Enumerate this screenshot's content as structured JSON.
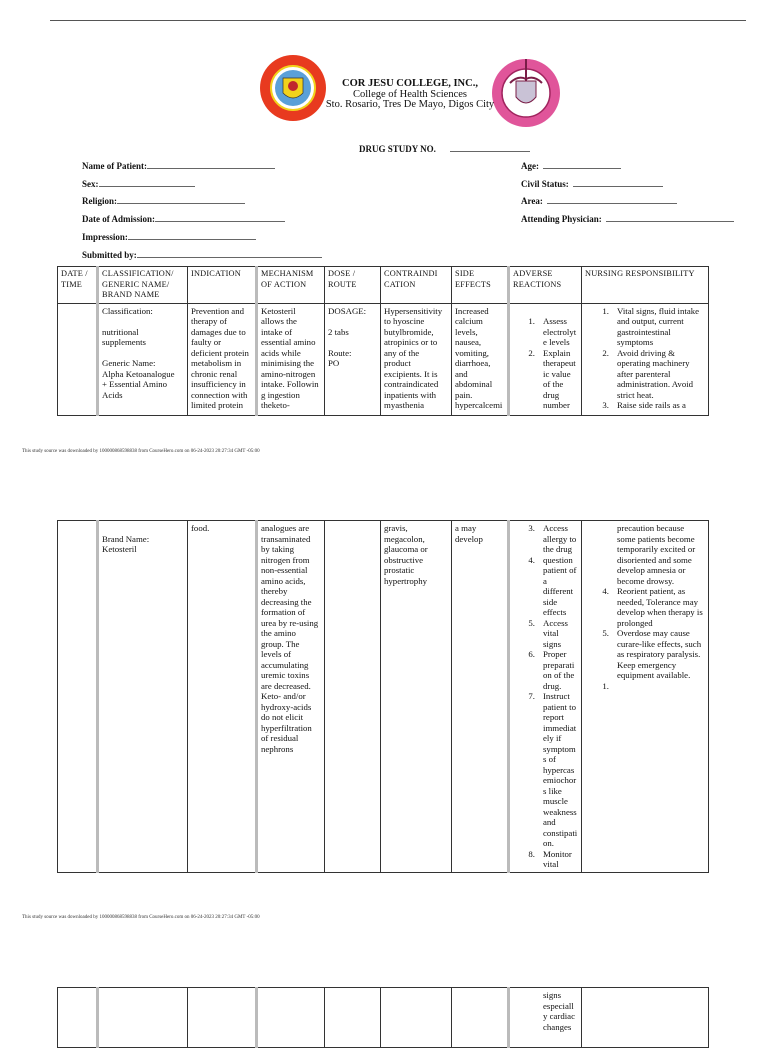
{
  "header": {
    "college": "COR JESU COLLEGE, INC.,",
    "department": "College of Health Sciences",
    "address": "Sto. Rosario, Tres De Mayo, Digos City",
    "left_logo_text": "COR JESU COLLEGE",
    "right_logo_text": "COLLEGE OF HEALTH SCIENCES",
    "left_logo_colors": {
      "ring": "#e83a1f",
      "inner": "#f2d21c"
    },
    "right_logo_color": "#e0559a",
    "drug_study_label": "DRUG STUDY NO."
  },
  "form": {
    "name_of_patient": "Name of Patient:",
    "sex": "Sex:",
    "religion": "Religion:",
    "date_of_admission": "Date of Admission:",
    "impression": "Impression:",
    "submitted_by": "Submitted by:",
    "age": "Age:",
    "civil_status": "Civil Status:",
    "area": "Area:",
    "attending_physician": "Attending Physician:"
  },
  "footer_text": "This study source was downloaded by 100000868598838 from CourseHero.com on 06-24-2023 20:27:34 GMT -05:00",
  "columns": [
    [
      "DATE /",
      "TIME"
    ],
    [
      "CLASSIFICATION/",
      "GENERIC NAME/",
      "BRAND NAME"
    ],
    [
      "INDICATION"
    ],
    [
      "MECHANISM",
      "OF ACTION"
    ],
    [
      "DOSE /",
      "ROUTE"
    ],
    [
      "CONTRAINDI",
      "CATION"
    ],
    [
      "SIDE",
      "EFFECTS"
    ],
    [
      "ADVERSE",
      "REACTIONS"
    ],
    [
      "NURSING RESPONSIBILITY"
    ]
  ],
  "page1": [
    [],
    [
      "Classification:",
      "",
      "nutritional",
      "supplements",
      "",
      "Generic Name:",
      "Alpha Ketoanalogue",
      "+ Essential Amino",
      "Acids"
    ],
    [
      "Prevention and",
      "therapy of",
      "damages due to",
      "faulty or",
      "deficient protein",
      "metabolism in",
      "chronic renal",
      "insufficiency in",
      "connection with",
      "limited protein"
    ],
    [
      "Ketosteril",
      "allows the",
      "intake of",
      "essential amino",
      "acids while",
      "minimising the",
      "amino-nitrogen",
      "intake. Followin",
      "g ingestion",
      "theketo-"
    ],
    [
      "DOSAGE:",
      "",
      "2 tabs",
      "",
      "Route:",
      "PO"
    ],
    [
      "Hypersensitivity",
      "to hyoscine",
      "butylbromide,",
      "atropinics or to",
      "any of the",
      "product",
      "excipients. It is",
      "contraindicated",
      "inpatients with",
      "myasthenia"
    ],
    [
      "Increased",
      "calcium",
      "levels,",
      "nausea,",
      "vomiting,",
      "diarrhoea,",
      "and",
      "abdominal",
      "pain.",
      "hypercalcemi"
    ],
    [
      {
        "n": "",
        "lines": [
          ""
        ]
      },
      {
        "n": "1.",
        "lines": [
          "Assess",
          "electrolyt",
          "e levels"
        ]
      },
      {
        "n": "2.",
        "lines": [
          "Explain",
          "therapeut",
          "ic value",
          "of the",
          "drug",
          "number"
        ]
      }
    ],
    [
      {
        "n": "1.",
        "lines": [
          "Vital signs, fluid intake",
          "and output, current",
          "gastrointestinal",
          "symptoms"
        ]
      },
      {
        "n": "2.",
        "lines": [
          "Avoid driving &",
          "operating machinery",
          "after parenteral",
          "administration. Avoid",
          "strict heat."
        ]
      },
      {
        "n": "3.",
        "lines": [
          "Raise side rails as a"
        ]
      }
    ]
  ],
  "page2": [
    [],
    [
      "",
      "Brand Name:",
      "Ketosteril"
    ],
    [
      "food."
    ],
    [
      "analogues are",
      "transaminated",
      "by taking",
      "nitrogen from",
      "non-essential",
      "amino acids,",
      "thereby",
      "decreasing the",
      "formation of",
      "urea by re-using",
      "the amino",
      "group. The",
      "levels of",
      "accumulating",
      "uremic toxins",
      "are decreased.",
      "Keto- and/or",
      "hydroxy-acids",
      "do not elicit",
      "hyperfiltration",
      "of residual",
      "nephrons"
    ],
    [],
    [
      "gravis,",
      "megacolon,",
      "glaucoma or",
      "obstructive",
      "prostatic",
      "hypertrophy"
    ],
    [
      "a may",
      "develop"
    ],
    [
      {
        "n": "3.",
        "lines": [
          "Access",
          "allergy to",
          "the drug"
        ]
      },
      {
        "n": "4.",
        "lines": [
          "question",
          "patient of",
          "a",
          "different",
          "side",
          "effects"
        ]
      },
      {
        "n": "5.",
        "lines": [
          "Access",
          "vital",
          "signs"
        ]
      },
      {
        "n": "6.",
        "lines": [
          "Proper",
          "preparati",
          "on of the",
          "drug."
        ]
      },
      {
        "n": "7.",
        "lines": [
          "Instruct",
          "patient to",
          "report",
          "immediat",
          "ely if",
          "symptom",
          "s of",
          "hypercas",
          "emiochor",
          "s like",
          "muscle",
          "weakness",
          "and",
          "constipati",
          "on."
        ]
      },
      {
        "n": "8.",
        "lines": [
          "Monitor",
          "vital"
        ]
      }
    ],
    [
      {
        "n": "",
        "lines": [
          "precaution because",
          "some patients become",
          "temporarily excited or",
          "disoriented and some",
          "develop amnesia or",
          "become drowsy."
        ]
      },
      {
        "n": "4.",
        "lines": [
          "Reorient patient, as",
          "needed, Tolerance may",
          "develop when therapy is",
          "prolonged"
        ]
      },
      {
        "n": "5.",
        "lines": [
          "Overdose may cause",
          "curare-like effects, such",
          "as respiratory paralysis.",
          "Keep emergency",
          "equipment available."
        ]
      },
      {
        "n": "1.",
        "lines": [
          ""
        ]
      }
    ]
  ],
  "page3": [
    [],
    [],
    [],
    [],
    [],
    [],
    [],
    [
      {
        "n": "",
        "lines": [
          "signs",
          "especiall",
          "y cardiac",
          "changes"
        ]
      }
    ],
    []
  ]
}
